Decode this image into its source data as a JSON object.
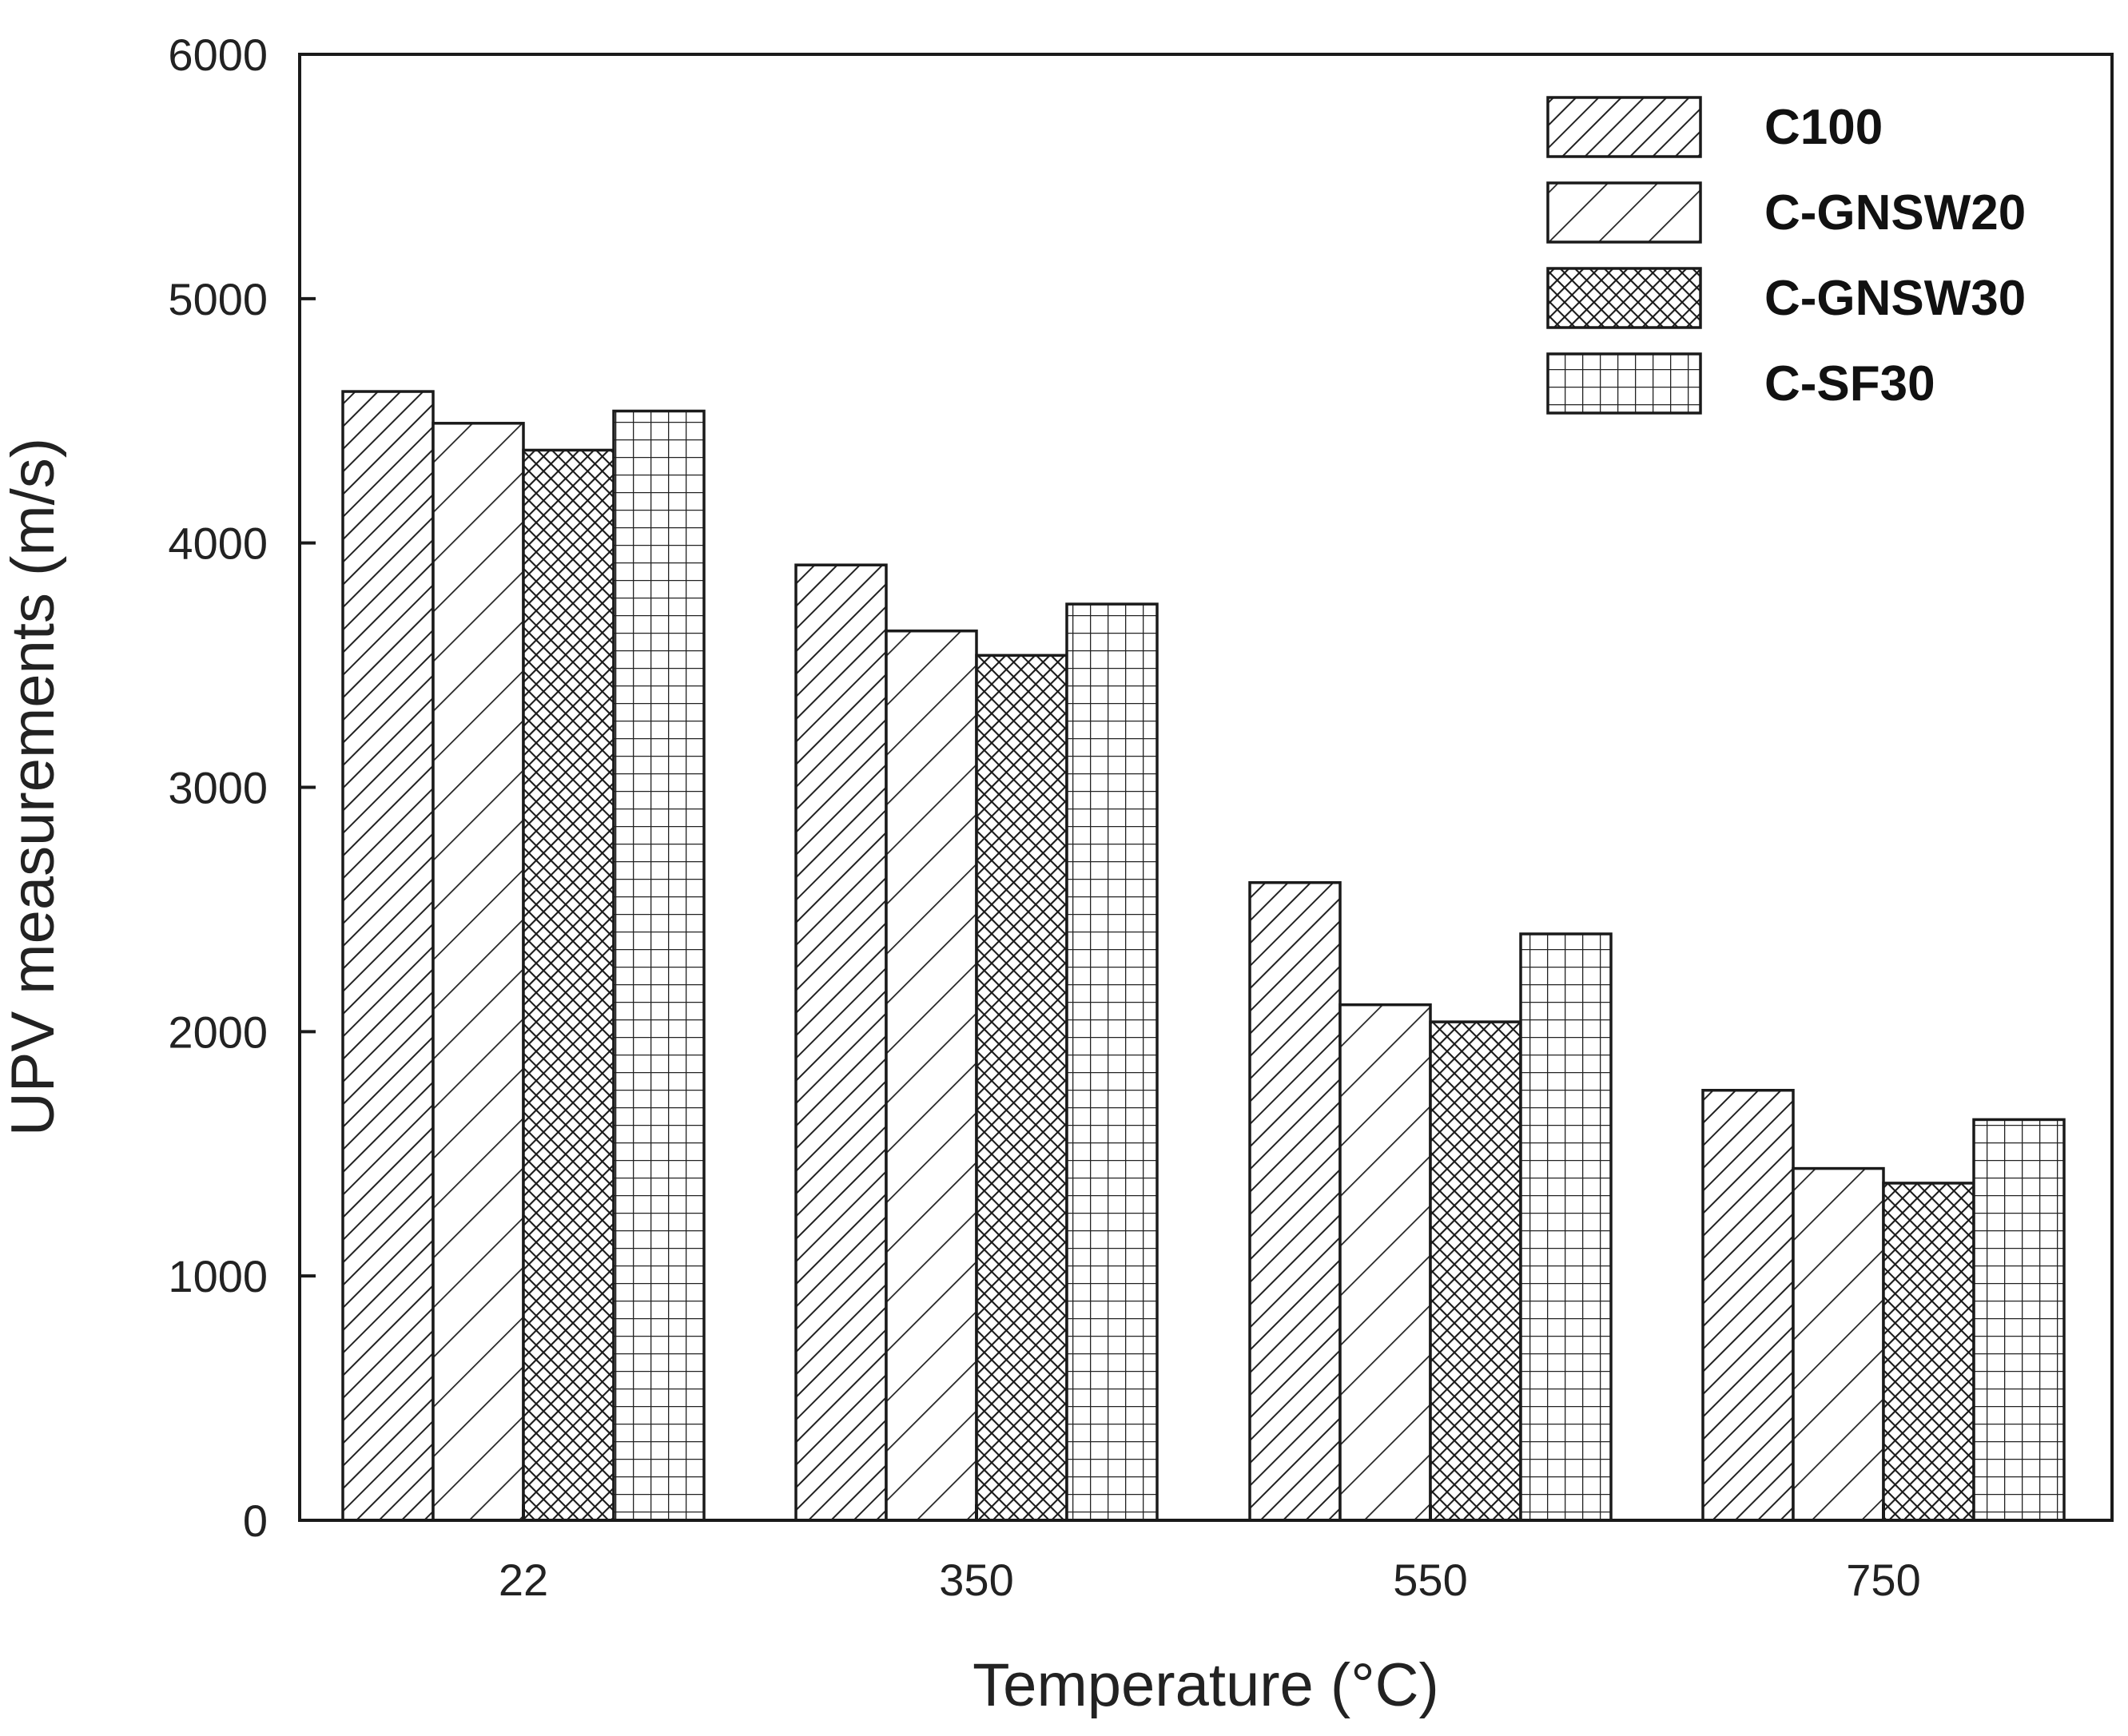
{
  "chart_data": {
    "type": "bar",
    "title": "",
    "xlabel": "Temperature (°C)",
    "ylabel": "UPV measurements (m/s)",
    "categories": [
      "22",
      "350",
      "550",
      "750"
    ],
    "ylim": [
      0,
      6000
    ],
    "yticks": [
      0,
      1000,
      2000,
      3000,
      4000,
      5000,
      6000
    ],
    "grid": false,
    "legend_position": "top-right",
    "series": [
      {
        "name": "C100",
        "pattern": "dense-diagonal",
        "values": [
          4620,
          3910,
          2610,
          1760
        ]
      },
      {
        "name": "C-GNSW20",
        "pattern": "sparse-diagonal",
        "values": [
          4490,
          3640,
          2110,
          1440
        ]
      },
      {
        "name": "C-GNSW30",
        "pattern": "crosshatch",
        "values": [
          4380,
          3540,
          2040,
          1380
        ]
      },
      {
        "name": "C-SF30",
        "pattern": "grid",
        "values": [
          4540,
          3750,
          2400,
          1640
        ]
      }
    ],
    "colors": {
      "outline": "#1a1a1a",
      "hatch": "#222222",
      "background": "#ffffff"
    }
  }
}
